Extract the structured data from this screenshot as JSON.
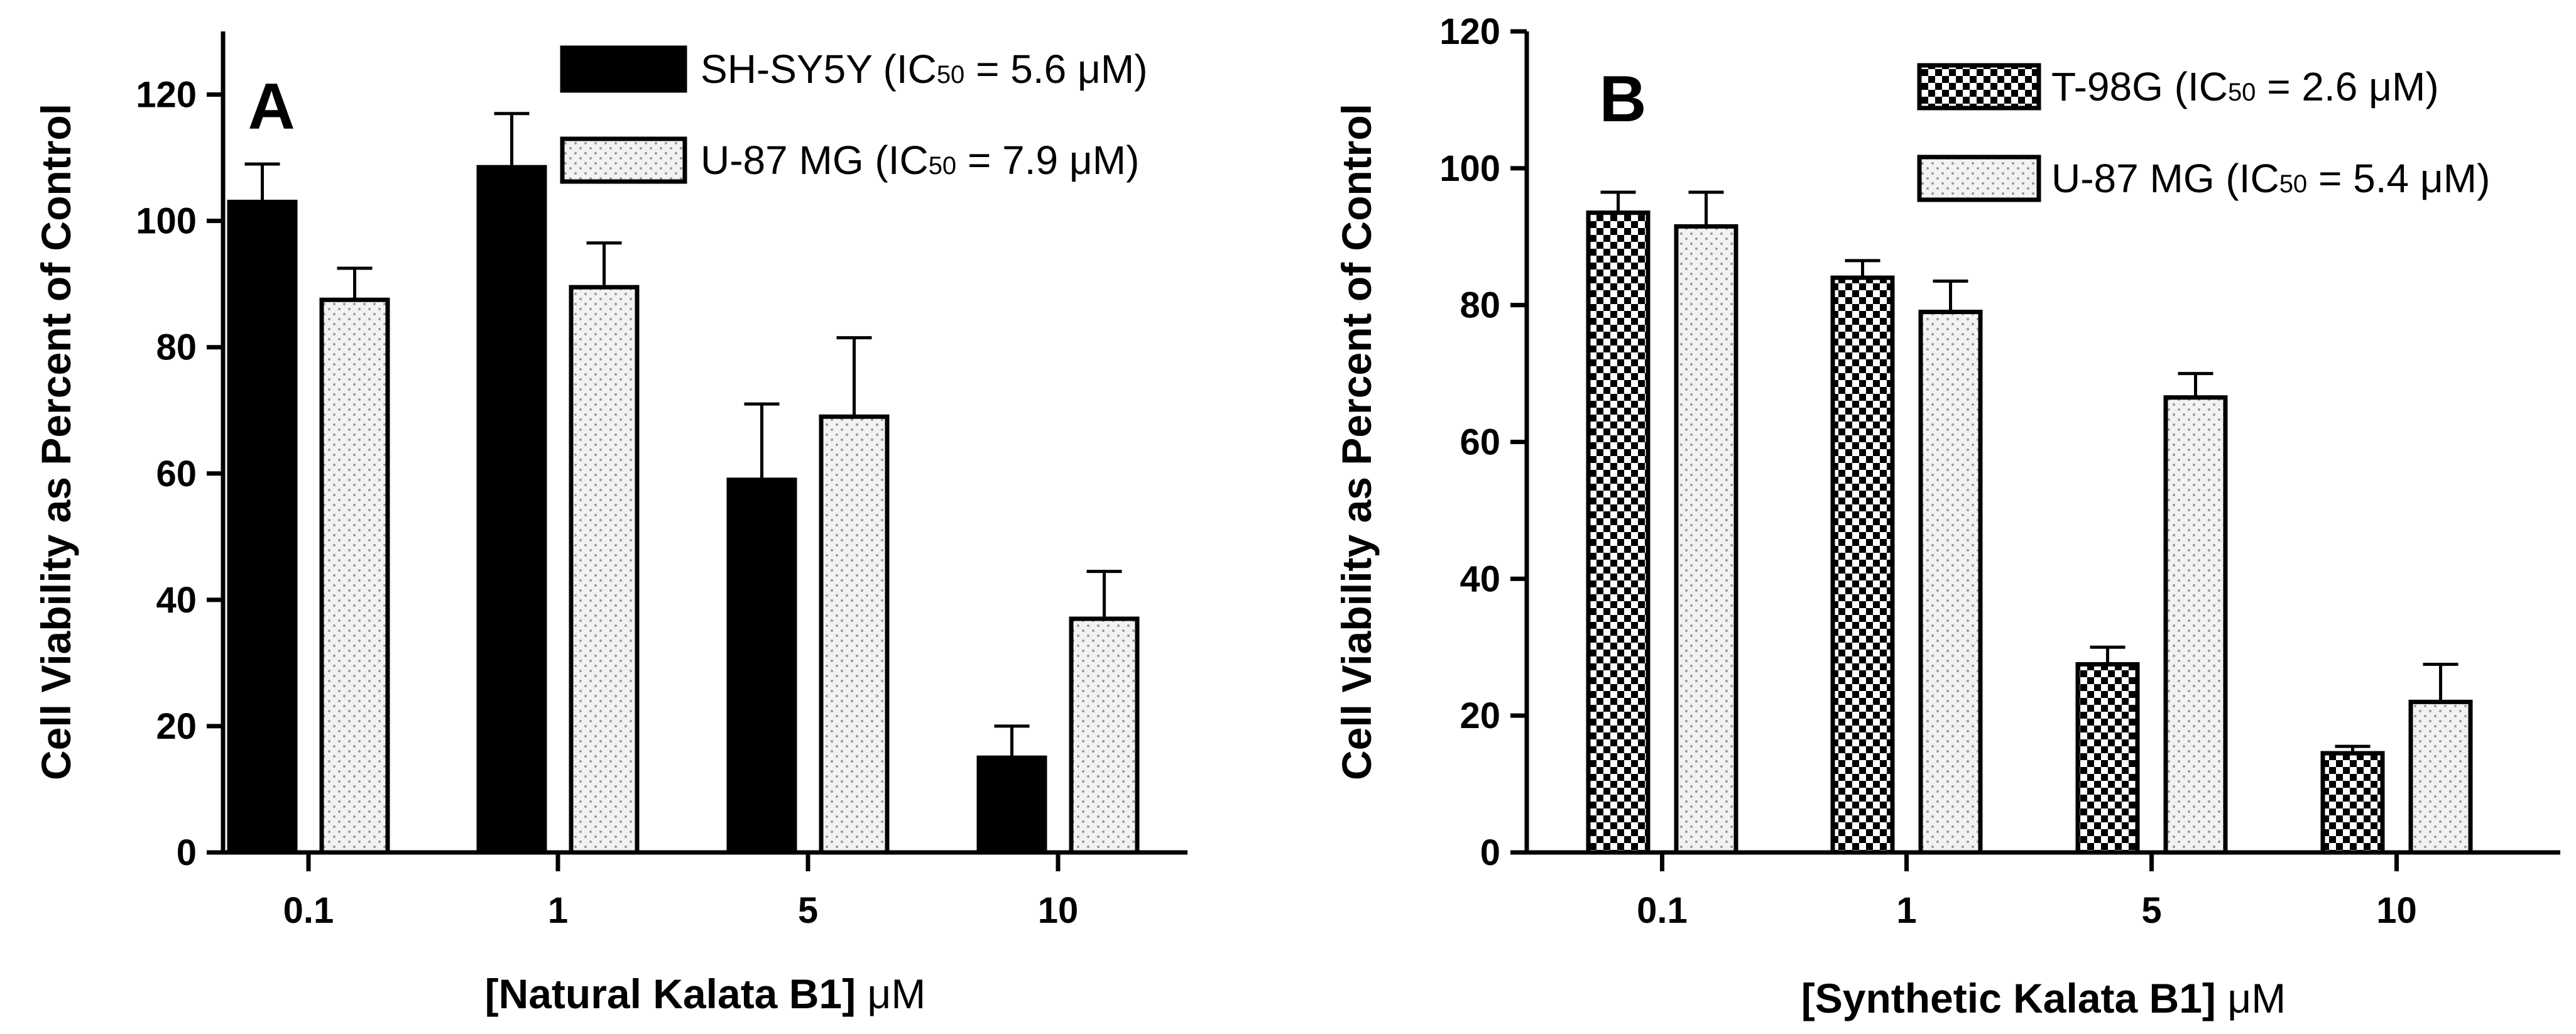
{
  "colors": {
    "black_fill": "#000000",
    "stipple_bg": "#f2f2f2",
    "stipple_dot": "#9a9a9a",
    "checker_dark": "#000000",
    "checker_light": "#ffffff"
  },
  "chart_data": [
    {
      "type": "bar",
      "panel": "A",
      "title": "",
      "categories": [
        "0.1",
        "1",
        "5",
        "10"
      ],
      "xlabel_main": "[Natural Kalata B1] ",
      "xlabel_unit": "μM",
      "ylabel": "Cell Viability as Percent of Control",
      "ylim": [
        0,
        130
      ],
      "yticks": [
        "0",
        "20",
        "40",
        "60",
        "80",
        "100",
        "120"
      ],
      "grid": false,
      "legend_position": "top-right",
      "series": [
        {
          "name": "SH-SY5Y",
          "legend": {
            "pre": "SH-SY5Y (IC",
            "sub": "50",
            "post": " = 5.6 μM)"
          },
          "pattern": "solid",
          "values": [
            103,
            108.5,
            59,
            15
          ],
          "errors": [
            6,
            8.5,
            12,
            5
          ]
        },
        {
          "name": "U-87 MG",
          "legend": {
            "pre": "U-87 MG (IC",
            "sub": "50",
            "post": " = 7.9 μM)"
          },
          "pattern": "stipple",
          "values": [
            87.5,
            89.5,
            69,
            37
          ],
          "errors": [
            5,
            7,
            12.5,
            7.5
          ]
        }
      ]
    },
    {
      "type": "bar",
      "panel": "B",
      "title": "",
      "categories": [
        "0.1",
        "1",
        "5",
        "10"
      ],
      "xlabel_main": "[Synthetic Kalata B1] ",
      "xlabel_unit": "μM",
      "ylabel": "Cell Viability as Percent of Control",
      "ylim": [
        0,
        120
      ],
      "yticks": [
        "0",
        "20",
        "40",
        "60",
        "80",
        "100",
        "120"
      ],
      "grid": false,
      "legend_position": "top-right",
      "series": [
        {
          "name": "T-98G",
          "legend": {
            "pre": "T-98G (IC",
            "sub": "50",
            "post": " = 2.6 μM)"
          },
          "pattern": "checker",
          "values": [
            93.5,
            84,
            27.5,
            14.5
          ],
          "errors": [
            3,
            2.5,
            2.5,
            1
          ]
        },
        {
          "name": "U-87 MG",
          "legend": {
            "pre": "U-87 MG (IC",
            "sub": "50",
            "post": " = 5.4 μM)"
          },
          "pattern": "stipple",
          "values": [
            91.5,
            79,
            66.5,
            22
          ],
          "errors": [
            5,
            4.5,
            3.5,
            5.5
          ]
        }
      ]
    }
  ]
}
